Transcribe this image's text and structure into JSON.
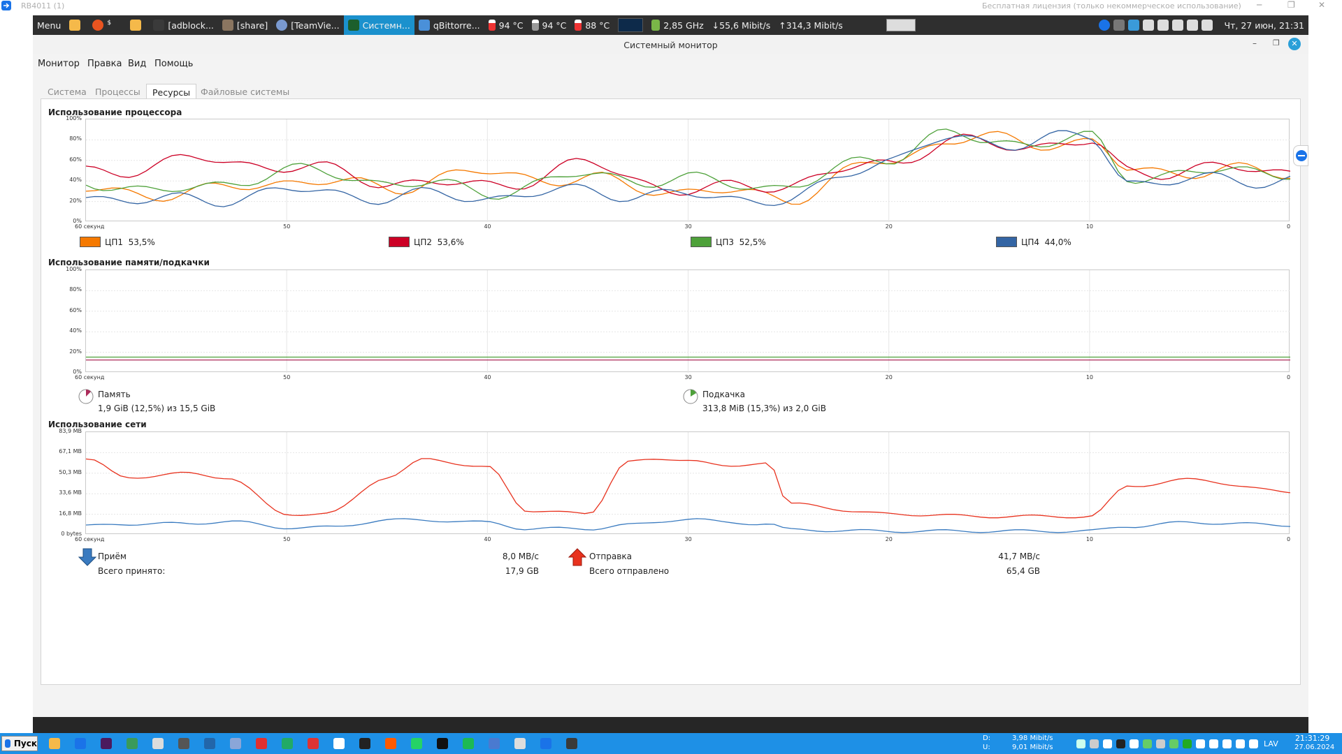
{
  "teamviewer": {
    "session_title": "RB4011 (1)",
    "license_text": "Бесплатная лицензия (только некоммерческое использование)"
  },
  "panel": {
    "menu_label": "Menu",
    "items": [
      {
        "label": "[adblock..."
      },
      {
        "label": "[share]"
      },
      {
        "label": "[TeamVie..."
      },
      {
        "label": "Системн..."
      },
      {
        "label": "qBittorre..."
      }
    ],
    "temps": [
      "94 °C",
      "94 °C",
      "88 °C"
    ],
    "cpu_freq": "2,85 GHz",
    "net_down": "55,6 Mibit/s",
    "net_up": "314,3 Mibit/s",
    "clock": "Чт, 27 июн, 21:31"
  },
  "window": {
    "title": "Системный монитор",
    "menus": [
      "Монитор",
      "Правка",
      "Вид",
      "Помощь"
    ],
    "tabs": [
      "Система",
      "Процессы",
      "Ресурсы",
      "Файловые системы"
    ],
    "active_tab": "Ресурсы"
  },
  "cpu": {
    "heading": "Использование процессора",
    "y_ticks": [
      "100%",
      "80%",
      "60%",
      "40%",
      "20%",
      "0%"
    ],
    "x_ticks": [
      "60 секунд",
      "50",
      "40",
      "30",
      "20",
      "10",
      "0"
    ],
    "legend": [
      {
        "name": "ЦП1",
        "value": "53,5%",
        "color": "#f57900"
      },
      {
        "name": "ЦП2",
        "value": "53,6%",
        "color": "#cc0025"
      },
      {
        "name": "ЦП3",
        "value": "52,5%",
        "color": "#4ea13a"
      },
      {
        "name": "ЦП4",
        "value": "44,0%",
        "color": "#3465a4"
      }
    ]
  },
  "memory": {
    "heading": "Использование памяти/подкачки",
    "y_ticks": [
      "100%",
      "80%",
      "60%",
      "40%",
      "20%",
      "0%"
    ],
    "x_ticks": [
      "60 секунд",
      "50",
      "40",
      "30",
      "20",
      "10",
      "0"
    ],
    "mem_label": "Память",
    "mem_value": "1,9 GiB (12,5%) из 15,5 GiB",
    "swap_label": "Подкачка",
    "swap_value": "313,8 MiB (15,3%) из 2,0 GiB"
  },
  "network": {
    "heading": "Использование сети",
    "y_ticks": [
      "83,9 MB",
      "67,1 MB",
      "50,3 MB",
      "33,6 MB",
      "16,8 MB",
      "0 bytes"
    ],
    "x_ticks": [
      "60 секунд",
      "50",
      "40",
      "30",
      "20",
      "10",
      "0"
    ],
    "recv_label": "Приём",
    "recv_rate": "8,0 MB/с",
    "recv_total_label": "Всего принято:",
    "recv_total": "17,9 GB",
    "send_label": "Отправка",
    "send_rate": "41,7 MB/с",
    "send_total_label": "Всего отправлено",
    "send_total": "65,4 GB"
  },
  "taskbar": {
    "start_label": "Пуск",
    "net_d_label": "D:",
    "net_d_value": "3,98 Mibit/s",
    "net_u_label": "U:",
    "net_u_value": "9,01 Mibit/s",
    "lang": "LAV",
    "time": "21:31:29",
    "date": "27.06.2024"
  },
  "chart_data": [
    {
      "type": "line",
      "title": "Использование процессора",
      "x": [
        60,
        55,
        50,
        45,
        40,
        35,
        30,
        25,
        20,
        17,
        15,
        10,
        8,
        5,
        0
      ],
      "series": [
        {
          "name": "ЦП1",
          "values": [
            30,
            28,
            40,
            35,
            48,
            40,
            30,
            25,
            60,
            80,
            80,
            77,
            50,
            50,
            48
          ]
        },
        {
          "name": "ЦП2",
          "values": [
            47,
            60,
            55,
            40,
            35,
            55,
            30,
            38,
            58,
            78,
            75,
            77,
            48,
            52,
            50
          ]
        },
        {
          "name": "ЦП3",
          "values": [
            38,
            30,
            50,
            40,
            30,
            45,
            40,
            35,
            65,
            85,
            78,
            80,
            45,
            48,
            50
          ]
        },
        {
          "name": "ЦП4",
          "values": [
            25,
            20,
            30,
            25,
            25,
            30,
            25,
            22,
            62,
            80,
            78,
            82,
            40,
            40,
            42
          ]
        }
      ],
      "ylim": [
        0,
        100
      ]
    },
    {
      "type": "line",
      "title": "Использование памяти/подкачки",
      "x": [
        60,
        0
      ],
      "series": [
        {
          "name": "Память",
          "values": [
            12.5,
            12.5
          ]
        },
        {
          "name": "Подкачка",
          "values": [
            15.3,
            15.3
          ]
        }
      ],
      "ylim": [
        0,
        100
      ]
    },
    {
      "type": "line",
      "title": "Использование сети",
      "x": [
        60,
        58,
        55,
        53,
        50,
        48,
        45,
        43,
        40,
        38,
        35,
        33,
        30,
        28,
        26,
        25,
        20,
        15,
        10,
        8,
        5,
        0
      ],
      "series": [
        {
          "name": "Отправка",
          "values": [
            62,
            47,
            50,
            47,
            17,
            17,
            47,
            62,
            55,
            20,
            17,
            60,
            62,
            55,
            60,
            25,
            17,
            15,
            15,
            40,
            45,
            35
          ]
        },
        {
          "name": "Приём",
          "values": [
            7,
            9,
            9,
            11,
            6,
            6,
            12,
            12,
            10,
            5,
            5,
            8,
            13,
            10,
            9,
            4,
            3,
            3,
            3,
            7,
            10,
            8
          ]
        }
      ],
      "ylim": [
        0,
        83.9
      ]
    }
  ]
}
